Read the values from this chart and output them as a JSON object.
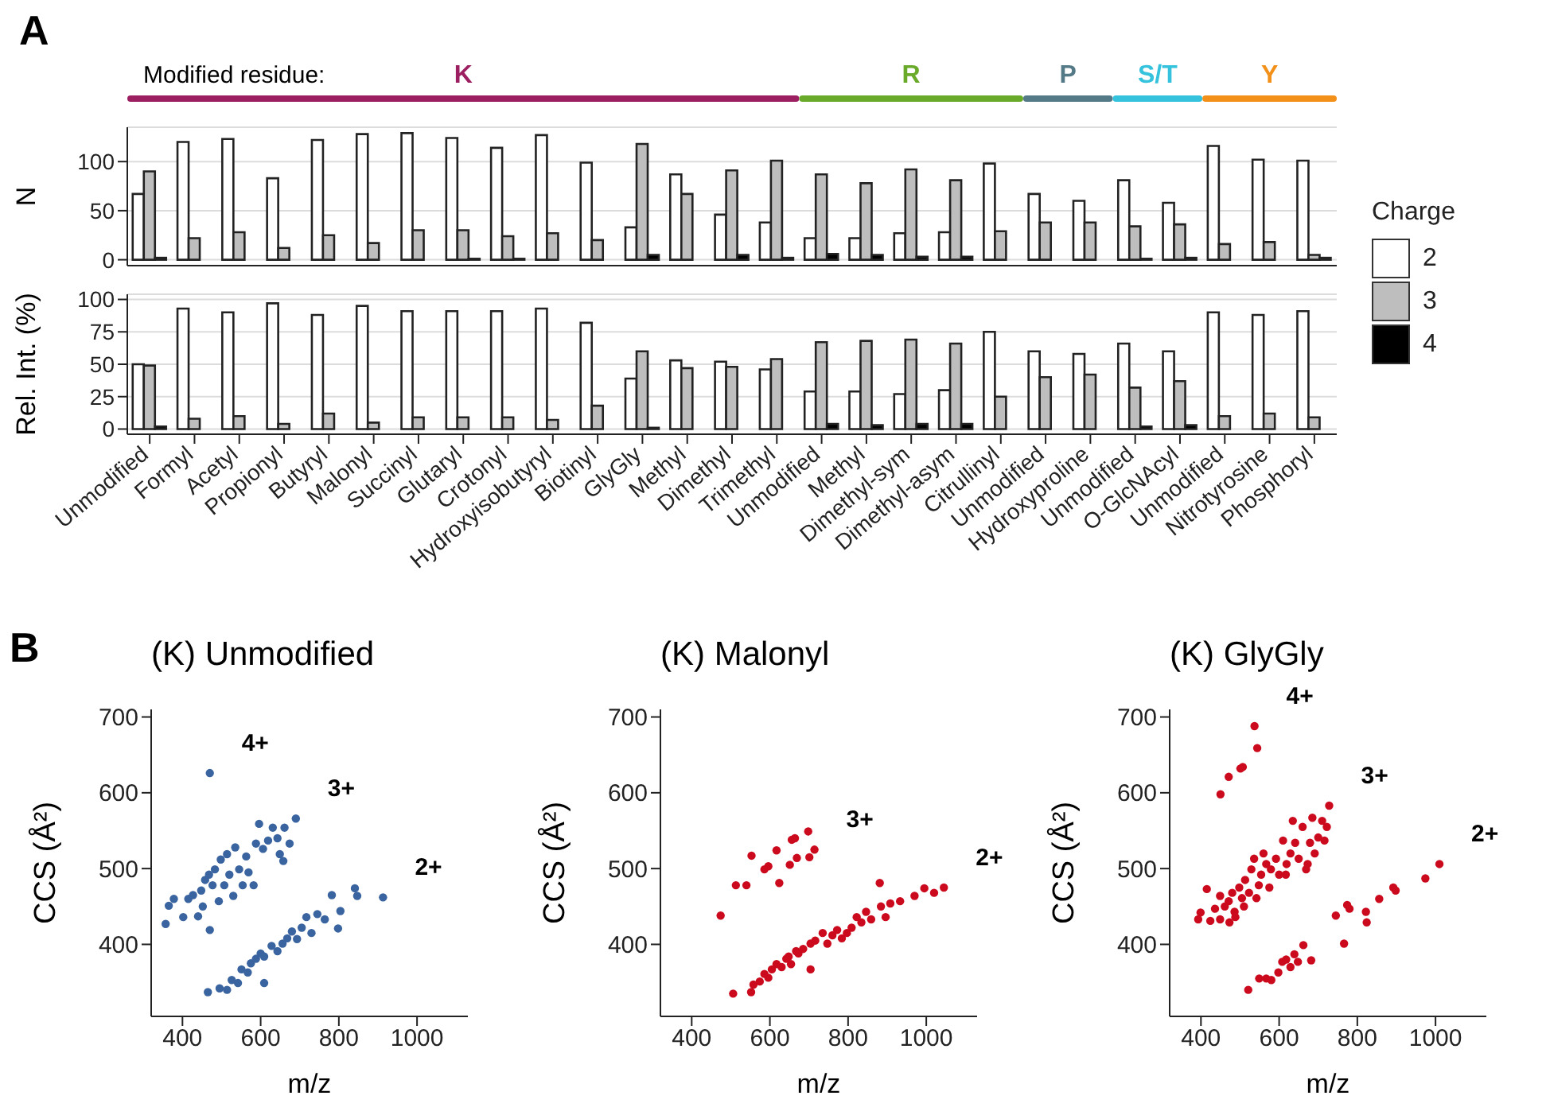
{
  "chart_data": [
    {
      "type": "bar",
      "ylabel": "N",
      "annotations": [
        "A",
        "Modified residue:",
        "K",
        "R",
        "P",
        "S/T",
        "Y"
      ],
      "categories": [
        null,
        null,
        null,
        null,
        null,
        null,
        null,
        null,
        null,
        null,
        null,
        null,
        null,
        null,
        null,
        null,
        null,
        null,
        null,
        null,
        null,
        null,
        null,
        null,
        null,
        null,
        null
      ],
      "series": [
        {
          "name": "2",
          "color": "#ffffff",
          "values": [
            67,
            120,
            123,
            83,
            122,
            128,
            129,
            124,
            114,
            127,
            99,
            33,
            87,
            46,
            38,
            22,
            22,
            27,
            28,
            98,
            67,
            60,
            81,
            58,
            116,
            102,
            101
          ]
        },
        {
          "name": "3",
          "color": "#bebebe",
          "values": [
            90,
            22,
            28,
            12,
            25,
            17,
            30,
            30,
            24,
            27,
            20,
            118,
            67,
            91,
            101,
            87,
            78,
            92,
            81,
            29,
            38,
            38,
            34,
            36,
            16,
            18,
            5
          ]
        },
        {
          "name": "4",
          "color": "#000000",
          "values": [
            2,
            0,
            0,
            0,
            0,
            0,
            0,
            1,
            1,
            0,
            0,
            5,
            0,
            5,
            2,
            6,
            5,
            3,
            3,
            0,
            0,
            0,
            1,
            2,
            0,
            0,
            2
          ]
        }
      ],
      "ylim": [
        -6,
        135
      ],
      "yticks": [
        0,
        50,
        100
      ],
      "grid": "y",
      "tick_labels": "y",
      "legend": "right",
      "legend_title": "Charge"
    },
    {
      "type": "bar",
      "ylabel": "Rel. Int. (%)",
      "categories": [
        "Unmodified",
        "Formyl",
        "Acetyl",
        "Propionyl",
        "Butyryl",
        "Malonyl",
        "Succinyl",
        "Glutaryl",
        "Crotonyl",
        "Hydroxyisobutyryl",
        "Biotinyl",
        "GlyGly",
        "Methyl",
        "Dimethyl",
        "Trimethyl",
        "Unmodified",
        "Methyl",
        "Dimethyl-sym",
        "Dimethyl-asym",
        "Citrullinyl",
        "Unmodified",
        "Hydroxyproline",
        "Unmodified",
        "O-GlcNAcyl",
        "Unmodified",
        "Nitrotyrosine",
        "Phosphoryl"
      ],
      "series": [
        {
          "color": "#ffffff",
          "values": [
            50,
            93,
            90,
            97,
            88,
            95,
            91,
            91,
            91,
            93,
            82,
            39,
            53,
            52,
            46,
            29,
            29,
            27,
            30,
            75,
            60,
            58,
            66,
            60,
            90,
            88,
            91
          ]
        },
        {
          "color": "#bebebe",
          "values": [
            49,
            8,
            10,
            4,
            12,
            5,
            9,
            9,
            9,
            7,
            18,
            60,
            47,
            48,
            54,
            67,
            68,
            69,
            66,
            25,
            40,
            42,
            32,
            37,
            10,
            12,
            9
          ]
        },
        {
          "color": "#000000",
          "values": [
            2,
            0,
            0,
            0,
            0,
            0,
            0,
            0,
            0,
            0,
            0,
            1,
            0,
            0,
            0,
            4,
            3,
            4,
            4,
            0,
            0,
            0,
            2,
            3,
            0,
            0,
            0
          ]
        }
      ],
      "ylim": [
        -4,
        104
      ],
      "yticks": [
        0,
        25,
        50,
        75,
        100
      ],
      "grid": "y"
    },
    {
      "type": "scatter",
      "title": "(K) Unmodified",
      "xlabel": "m/z",
      "ylabel": "CCS (Å²)",
      "marker": "circle",
      "xlim": [
        320,
        1130
      ],
      "xticks": [
        400,
        600,
        800,
        1000
      ],
      "ylim": [
        305,
        710
      ],
      "yticks": [
        400,
        500,
        600,
        700
      ],
      "annotations": [
        "B",
        {
          "text": "4+",
          "x": 470,
          "y": 626
        },
        {
          "text": "3+",
          "x": 690,
          "y": 566
        },
        {
          "text": "2+",
          "x": 913,
          "y": 462
        }
      ],
      "series": [
        {
          "color": "#3a64a0",
          "x": [
            470
          ],
          "values": [
            626
          ]
        },
        {
          "color": "#3a64a0",
          "x": [
            357,
            365,
            378,
            402,
            415,
            427,
            440,
            448,
            458,
            468,
            477,
            483,
            493,
            498,
            507,
            514,
            520,
            530,
            535,
            545,
            554,
            563,
            569,
            582,
            588,
            596,
            606,
            619,
            631,
            643,
            649,
            658,
            661,
            674,
            690,
            452,
            470
          ],
          "values": [
            427,
            451,
            460,
            436,
            460,
            465,
            437,
            471,
            485,
            492,
            478,
            499,
            457,
            512,
            478,
            519,
            492,
            464,
            528,
            499,
            478,
            516,
            495,
            478,
            533,
            559,
            526,
            537,
            554,
            540,
            519,
            510,
            554,
            533,
            566,
            450,
            419
          ]
        },
        {
          "color": "#3a64a0",
          "x": [
            465,
            495,
            514,
            526,
            542,
            551,
            567,
            575,
            588,
            600,
            609,
            628,
            643,
            656,
            668,
            680,
            693,
            705,
            717,
            730,
            745,
            764,
            782,
            798,
            804,
            841,
            847,
            913,
            609
          ],
          "values": [
            337,
            342,
            340,
            353,
            349,
            367,
            363,
            375,
            381,
            388,
            384,
            398,
            391,
            401,
            408,
            417,
            407,
            422,
            436,
            415,
            440,
            433,
            465,
            421,
            444,
            474,
            464,
            462,
            349
          ]
        }
      ]
    },
    {
      "type": "scatter",
      "title": "(K) Malonyl",
      "xlabel": "m/z",
      "ylabel": "CCS (Å²)",
      "marker": "circle",
      "xlim": [
        320,
        1130
      ],
      "xticks": [
        400,
        600,
        800,
        1000
      ],
      "ylim": [
        305,
        710
      ],
      "yticks": [
        400,
        500,
        600,
        700
      ],
      "annotations": [
        {
          "text": "3+",
          "x": 714,
          "y": 525
        },
        {
          "text": "2+",
          "x": 1045,
          "y": 475
        }
      ],
      "series": [
        {
          "color": "#cc0a1e",
          "x": [
            474,
            513,
            540,
            553,
            586,
            596,
            617,
            624,
            651,
            656,
            664,
            669,
            698,
            701,
            714
          ],
          "values": [
            438,
            478,
            478,
            517,
            499,
            503,
            524,
            481,
            505,
            538,
            540,
            514,
            549,
            515,
            525
          ]
        },
        {
          "color": "#cc0a1e",
          "x": [
            506,
            552,
            558,
            574,
            586,
            596,
            605,
            617,
            630,
            642,
            648,
            654,
            667,
            673,
            685,
            704,
            704,
            716,
            735,
            747,
            760,
            772,
            784,
            797,
            809,
            822,
            834,
            846,
            859,
            881,
            884,
            896,
            908,
            933,
            970,
            995,
            1020,
            1045
          ],
          "values": [
            335,
            337,
            347,
            351,
            361,
            356,
            367,
            374,
            370,
            381,
            384,
            374,
            391,
            388,
            394,
            367,
            401,
            405,
            415,
            401,
            412,
            419,
            408,
            415,
            422,
            436,
            429,
            443,
            433,
            481,
            450,
            436,
            454,
            457,
            464,
            474,
            468,
            475
          ]
        }
      ]
    },
    {
      "type": "scatter",
      "title": "(K) GlyGly",
      "xlabel": "m/z",
      "ylabel": "CCS (Å²)",
      "marker": "circle",
      "xlim": [
        320,
        1130
      ],
      "xticks": [
        400,
        600,
        800,
        1000
      ],
      "ylim": [
        305,
        710
      ],
      "yticks": [
        400,
        500,
        600,
        700
      ],
      "annotations": [
        {
          "text": "4+",
          "x": 537,
          "y": 688
        },
        {
          "text": "3+",
          "x": 728,
          "y": 583
        },
        {
          "text": "2+",
          "x": 1010,
          "y": 506
        }
      ],
      "series": [
        {
          "color": "#cc0a1e",
          "x": [
            450,
            471,
            501,
            507,
            537,
            544
          ],
          "values": [
            598,
            621,
            632,
            634,
            688,
            659
          ]
        },
        {
          "color": "#cc0a1e",
          "x": [
            393,
            415,
            436,
            449,
            461,
            471,
            480,
            486,
            498,
            505,
            513,
            523,
            529,
            536,
            542,
            548,
            554,
            560,
            567,
            575,
            592,
            600,
            610,
            619,
            629,
            635,
            641,
            650,
            660,
            669,
            679,
            685,
            691,
            700,
            710,
            716,
            728,
            722,
            399,
            424,
            449,
            473,
            488,
            510,
            579,
            617,
            673
          ],
          "values": [
            433,
            473,
            447,
            464,
            450,
            457,
            468,
            443,
            475,
            461,
            485,
            468,
            499,
            513,
            461,
            478,
            492,
            520,
            506,
            475,
            513,
            492,
            537,
            506,
            520,
            563,
            534,
            513,
            555,
            499,
            534,
            567,
            520,
            541,
            563,
            537,
            583,
            555,
            442,
            431,
            433,
            429,
            436,
            450,
            499,
            492,
            506
          ]
        },
        {
          "color": "#cc0a1e",
          "x": [
            521,
            549,
            567,
            580,
            598,
            608,
            618,
            629,
            639,
            648,
            662,
            682,
            745,
            766,
            774,
            780,
            822,
            824,
            856,
            892,
            898,
            974,
            1010
          ],
          "values": [
            340,
            355,
            355,
            353,
            363,
            377,
            380,
            370,
            387,
            377,
            399,
            379,
            438,
            401,
            452,
            447,
            443,
            429,
            460,
            475,
            471,
            487,
            506
          ]
        }
      ]
    }
  ]
}
